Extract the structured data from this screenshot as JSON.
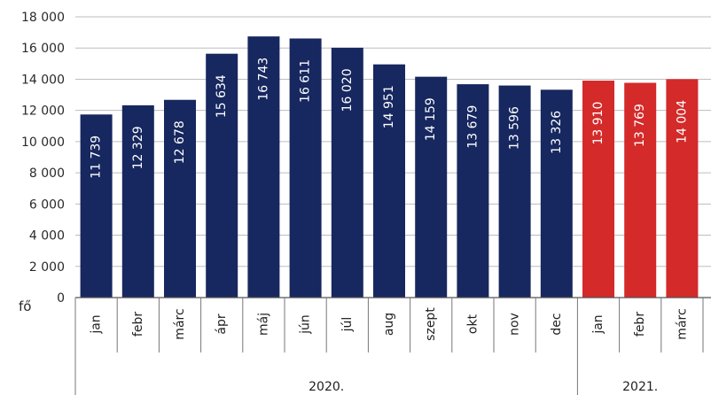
{
  "chart_data": {
    "type": "bar",
    "unit_label": "fő",
    "ylim": [
      0,
      18000
    ],
    "y_ticks": [
      "0",
      "2 000",
      "4 000",
      "6 000",
      "8 000",
      "10 000",
      "12 000",
      "14 000",
      "16 000",
      "18 000"
    ],
    "categories": [
      "jan",
      "febr",
      "márc",
      "ápr",
      "máj",
      "jún",
      "júl",
      "aug",
      "szept",
      "okt",
      "nov",
      "dec",
      "jan",
      "febr",
      "márc"
    ],
    "values": [
      11739,
      12329,
      12678,
      15634,
      16743,
      16611,
      16020,
      14951,
      14159,
      13679,
      13596,
      13326,
      13910,
      13769,
      14004
    ],
    "value_labels": [
      "11 739",
      "12 329",
      "12 678",
      "15 634",
      "16 743",
      "16 611",
      "16 020",
      "14 951",
      "14 159",
      "13 679",
      "13 596",
      "13 326",
      "13 910",
      "13 769",
      "14 004"
    ],
    "groups": [
      {
        "label": "2020.",
        "count": 12,
        "color": "#17275f"
      },
      {
        "label": "2021.",
        "count": 3,
        "color": "#d42a2a"
      }
    ],
    "grid": true
  }
}
